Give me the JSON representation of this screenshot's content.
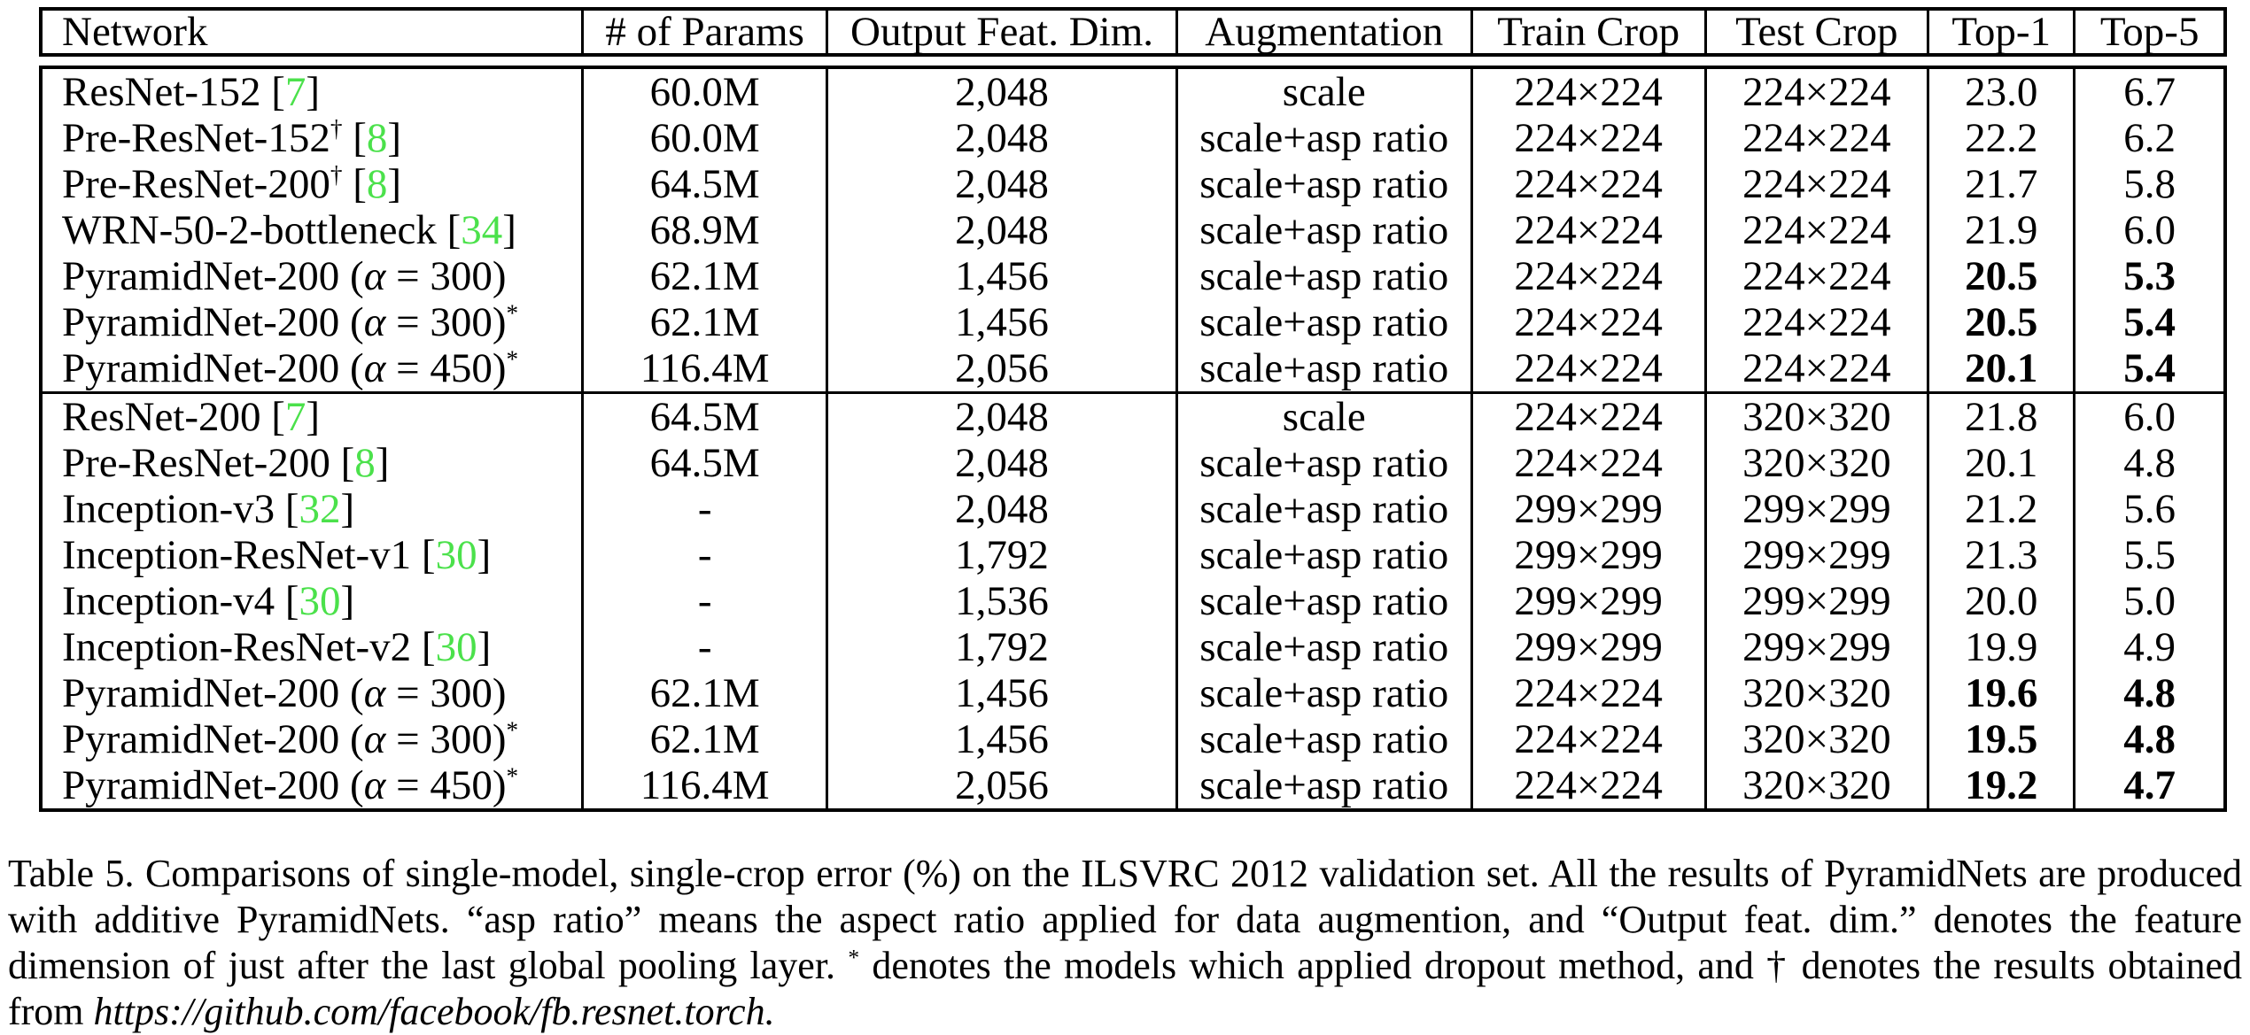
{
  "colors": {
    "citation_green": "#4be14b",
    "text": "#000000",
    "border": "#000000"
  },
  "table": {
    "columns": [
      "Network",
      "# of Params",
      "Output Feat. Dim.",
      "Augmentation",
      "Train Crop",
      "Test Crop",
      "Top-1",
      "Top-5"
    ],
    "groups": [
      {
        "rows": [
          {
            "network": {
              "base": "ResNet-152",
              "sup": "",
              "cite": "7"
            },
            "params": "60.0M",
            "feat_dim": "2,048",
            "augmentation": "scale",
            "train_crop": "224×224",
            "test_crop": "224×224",
            "top1": "23.0",
            "top5": "6.7",
            "bold": false
          },
          {
            "network": {
              "base": "Pre-ResNet-152",
              "sup": "†",
              "cite": "8"
            },
            "params": "60.0M",
            "feat_dim": "2,048",
            "augmentation": "scale+asp ratio",
            "train_crop": "224×224",
            "test_crop": "224×224",
            "top1": "22.2",
            "top5": "6.2",
            "bold": false
          },
          {
            "network": {
              "base": "Pre-ResNet-200",
              "sup": "†",
              "cite": "8"
            },
            "params": "64.5M",
            "feat_dim": "2,048",
            "augmentation": "scale+asp ratio",
            "train_crop": "224×224",
            "test_crop": "224×224",
            "top1": "21.7",
            "top5": "5.8",
            "bold": false
          },
          {
            "network": {
              "base": "WRN-50-2-bottleneck",
              "sup": "",
              "cite": "34"
            },
            "params": "68.9M",
            "feat_dim": "2,048",
            "augmentation": "scale+asp ratio",
            "train_crop": "224×224",
            "test_crop": "224×224",
            "top1": "21.9",
            "top5": "6.0",
            "bold": false
          },
          {
            "network": {
              "base": "PyramidNet-200 (α = 300)",
              "sup": "",
              "cite": ""
            },
            "params": "62.1M",
            "feat_dim": "1,456",
            "augmentation": "scale+asp ratio",
            "train_crop": "224×224",
            "test_crop": "224×224",
            "top1": "20.5",
            "top5": "5.3",
            "bold": true
          },
          {
            "network": {
              "base": "PyramidNet-200 (α = 300)",
              "sup": "*",
              "cite": ""
            },
            "params": "62.1M",
            "feat_dim": "1,456",
            "augmentation": "scale+asp ratio",
            "train_crop": "224×224",
            "test_crop": "224×224",
            "top1": "20.5",
            "top5": "5.4",
            "bold": true
          },
          {
            "network": {
              "base": "PyramidNet-200 (α = 450)",
              "sup": "*",
              "cite": ""
            },
            "params": "116.4M",
            "feat_dim": "2,056",
            "augmentation": "scale+asp ratio",
            "train_crop": "224×224",
            "test_crop": "224×224",
            "top1": "20.1",
            "top5": "5.4",
            "bold": true
          }
        ]
      },
      {
        "rows": [
          {
            "network": {
              "base": "ResNet-200",
              "sup": "",
              "cite": "7"
            },
            "params": "64.5M",
            "feat_dim": "2,048",
            "augmentation": "scale",
            "train_crop": "224×224",
            "test_crop": "320×320",
            "top1": "21.8",
            "top5": "6.0",
            "bold": false
          },
          {
            "network": {
              "base": "Pre-ResNet-200",
              "sup": "",
              "cite": "8"
            },
            "params": "64.5M",
            "feat_dim": "2,048",
            "augmentation": "scale+asp ratio",
            "train_crop": "224×224",
            "test_crop": "320×320",
            "top1": "20.1",
            "top5": "4.8",
            "bold": false
          },
          {
            "network": {
              "base": "Inception-v3",
              "sup": "",
              "cite": "32"
            },
            "params": "-",
            "feat_dim": "2,048",
            "augmentation": "scale+asp ratio",
            "train_crop": "299×299",
            "test_crop": "299×299",
            "top1": "21.2",
            "top5": "5.6",
            "bold": false
          },
          {
            "network": {
              "base": "Inception-ResNet-v1",
              "sup": "",
              "cite": "30"
            },
            "params": "-",
            "feat_dim": "1,792",
            "augmentation": "scale+asp ratio",
            "train_crop": "299×299",
            "test_crop": "299×299",
            "top1": "21.3",
            "top5": "5.5",
            "bold": false
          },
          {
            "network": {
              "base": "Inception-v4",
              "sup": "",
              "cite": "30"
            },
            "params": "-",
            "feat_dim": "1,536",
            "augmentation": "scale+asp ratio",
            "train_crop": "299×299",
            "test_crop": "299×299",
            "top1": "20.0",
            "top5": "5.0",
            "bold": false
          },
          {
            "network": {
              "base": "Inception-ResNet-v2",
              "sup": "",
              "cite": "30"
            },
            "params": "-",
            "feat_dim": "1,792",
            "augmentation": "scale+asp ratio",
            "train_crop": "299×299",
            "test_crop": "299×299",
            "top1": "19.9",
            "top5": "4.9",
            "bold": false
          },
          {
            "network": {
              "base": "PyramidNet-200 (α = 300)",
              "sup": "",
              "cite": ""
            },
            "params": "62.1M",
            "feat_dim": "1,456",
            "augmentation": "scale+asp ratio",
            "train_crop": "224×224",
            "test_crop": "320×320",
            "top1": "19.6",
            "top5": "4.8",
            "bold": true
          },
          {
            "network": {
              "base": "PyramidNet-200 (α = 300)",
              "sup": "*",
              "cite": ""
            },
            "params": "62.1M",
            "feat_dim": "1,456",
            "augmentation": "scale+asp ratio",
            "train_crop": "224×224",
            "test_crop": "320×320",
            "top1": "19.5",
            "top5": "4.8",
            "bold": true
          },
          {
            "network": {
              "base": "PyramidNet-200 (α = 450)",
              "sup": "*",
              "cite": ""
            },
            "params": "116.4M",
            "feat_dim": "2,056",
            "augmentation": "scale+asp ratio",
            "train_crop": "224×224",
            "test_crop": "320×320",
            "top1": "19.2",
            "top5": "4.7",
            "bold": true
          }
        ]
      }
    ]
  },
  "caption": {
    "segments": [
      {
        "text": "Table 5. Comparisons of single-model, single-crop error (%) on the ILSVRC 2012 validation set.  All the results of PyramidNets are produced with additive PyramidNets. “asp ratio” means the aspect ratio applied for data augmention, and “Output feat. dim.” denotes the feature dimension of just after the last global pooling layer. ",
        "style": "normal"
      },
      {
        "text": "*",
        "style": "sup"
      },
      {
        "text": " denotes the models which applied dropout method, and † denotes the results obtained from ",
        "style": "normal"
      },
      {
        "text": "https://github.com/facebook/fb.resnet.torch.",
        "style": "italic"
      }
    ]
  }
}
